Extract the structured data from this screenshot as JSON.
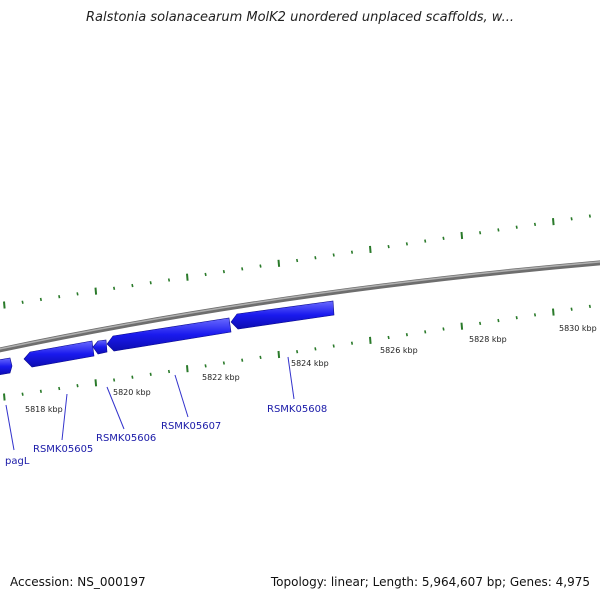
{
  "title": "Ralstonia solanacearum MolK2 unordered unplaced scaffolds, w...",
  "footer": {
    "accession": "Accession: NS_000197",
    "stats": "Topology: linear; Length: 5,964,607 bp; Genes: 4,975"
  },
  "scale_labels": [
    "5818 kbp",
    "5820 kbp",
    "5822 kbp",
    "5824 kbp",
    "5826 kbp",
    "5828 kbp",
    "5830 kbp"
  ],
  "genes": [
    {
      "label": "pagL",
      "strand": "forward"
    },
    {
      "label": "RSMK05605",
      "strand": "reverse"
    },
    {
      "label": "RSMK05606",
      "strand": "reverse"
    },
    {
      "label": "RSMK05607",
      "strand": "reverse"
    },
    {
      "label": "RSMK05608",
      "strand": "reverse"
    }
  ],
  "colors": {
    "gene": "#1a1aee",
    "gene_light": "#5a5aff",
    "tick": "#2a7a2a",
    "backbone": "#888888",
    "label_line": "#3333cc"
  }
}
